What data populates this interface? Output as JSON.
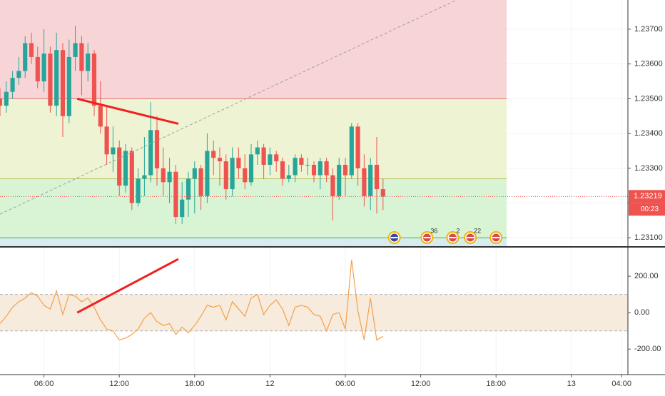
{
  "chart_data": [
    {
      "type": "candlestick",
      "open": [
        1.235,
        1.2348,
        1.2352,
        1.2356,
        1.2358,
        1.2366,
        1.2362,
        1.2355,
        1.2363,
        1.2348,
        1.2364,
        1.2345,
        1.2362,
        1.2366,
        1.2358,
        1.2363,
        1.2348,
        1.2342,
        1.2334,
        1.2336,
        1.2325,
        1.2335,
        1.232,
        1.2327,
        1.2328,
        1.2341,
        1.233,
        1.2326,
        1.2329,
        1.2316,
        1.2321,
        1.2327,
        1.233,
        1.2322,
        1.2335,
        1.2333,
        1.2332,
        1.2324,
        1.2333,
        1.233,
        1.2326,
        1.2334,
        1.2336,
        1.2331,
        1.2334,
        1.2332,
        1.2327,
        1.2328,
        1.2333,
        1.2331,
        1.2331,
        1.2328,
        1.2332,
        1.2328,
        1.2322,
        1.2331,
        1.2328,
        1.2342,
        1.233,
        1.2322,
        1.2331,
        1.2324
      ],
      "high": [
        1.2353,
        1.2355,
        1.2358,
        1.2362,
        1.2368,
        1.2369,
        1.2365,
        1.237,
        1.2365,
        1.2369,
        1.2366,
        1.2367,
        1.2371,
        1.2368,
        1.2366,
        1.2364,
        1.2355,
        1.2348,
        1.2342,
        1.2338,
        1.2337,
        1.2336,
        1.233,
        1.2339,
        1.2349,
        1.2345,
        1.2336,
        1.2333,
        1.2331,
        1.2326,
        1.2329,
        1.2332,
        1.2331,
        1.234,
        1.2338,
        1.2336,
        1.2334,
        1.2336,
        1.2336,
        1.2334,
        1.2337,
        1.2338,
        1.2337,
        1.2336,
        1.2335,
        1.2333,
        1.2331,
        1.2334,
        1.2334,
        1.2333,
        1.2332,
        1.2333,
        1.2333,
        1.233,
        1.2333,
        1.2333,
        1.2343,
        1.2343,
        1.2334,
        1.2333,
        1.2339,
        1.2327
      ],
      "low": [
        1.2345,
        1.2346,
        1.235,
        1.2354,
        1.2356,
        1.236,
        1.2353,
        1.2352,
        1.2346,
        1.2345,
        1.2339,
        1.2343,
        1.2358,
        1.2351,
        1.2355,
        1.2345,
        1.234,
        1.2331,
        1.2329,
        1.2322,
        1.2323,
        1.2318,
        1.2319,
        1.2322,
        1.2326,
        1.2325,
        1.2322,
        1.232,
        1.2314,
        1.2314,
        1.2316,
        1.2317,
        1.2318,
        1.232,
        1.2328,
        1.2325,
        1.2321,
        1.2322,
        1.2327,
        1.2324,
        1.2325,
        1.2331,
        1.2327,
        1.2328,
        1.2329,
        1.2325,
        1.2326,
        1.2326,
        1.2329,
        1.2328,
        1.2326,
        1.2324,
        1.2326,
        1.2315,
        1.2321,
        1.2322,
        1.2327,
        1.2325,
        1.2319,
        1.2318,
        1.2317,
        1.2318
      ],
      "close": [
        1.2348,
        1.2352,
        1.2356,
        1.2358,
        1.2366,
        1.2362,
        1.2355,
        1.2363,
        1.2348,
        1.2364,
        1.2345,
        1.2362,
        1.2366,
        1.2358,
        1.2363,
        1.2348,
        1.2342,
        1.2334,
        1.2336,
        1.2325,
        1.2335,
        1.232,
        1.2327,
        1.2328,
        1.2341,
        1.233,
        1.2326,
        1.2329,
        1.2316,
        1.2321,
        1.2327,
        1.233,
        1.2322,
        1.2335,
        1.2333,
        1.2332,
        1.2324,
        1.2333,
        1.233,
        1.2326,
        1.2334,
        1.2336,
        1.2331,
        1.2334,
        1.2332,
        1.2327,
        1.2328,
        1.2333,
        1.2331,
        1.2331,
        1.2328,
        1.2332,
        1.2328,
        1.2322,
        1.2331,
        1.2328,
        1.2342,
        1.233,
        1.2322,
        1.2331,
        1.2324,
        1.23219
      ],
      "up_color": "#26a69a",
      "down_color": "#ef5350",
      "xlim": [
        0,
        100
      ],
      "xticks": [
        {
          "value": 7,
          "label": "06:00"
        },
        {
          "value": 19,
          "label": "12:00"
        },
        {
          "value": 31,
          "label": "18:00"
        },
        {
          "value": 43,
          "label": "12"
        },
        {
          "value": 55,
          "label": "06:00"
        },
        {
          "value": 67,
          "label": "12:00"
        },
        {
          "value": 79,
          "label": "18:00"
        },
        {
          "value": 91,
          "label": "13"
        },
        {
          "value": 99,
          "label": "04:00"
        }
      ],
      "ylim": [
        1.23076,
        1.23784
      ],
      "yticks": [
        {
          "value": 1.231,
          "label": "1.23100"
        },
        {
          "value": 1.232,
          "label": "1.23200"
        },
        {
          "value": 1.233,
          "label": "1.23300"
        },
        {
          "value": 1.234,
          "label": "1.23400"
        },
        {
          "value": 1.235,
          "label": "1.23500"
        },
        {
          "value": 1.236,
          "label": "1.23600"
        },
        {
          "value": 1.237,
          "label": "1.23700"
        }
      ],
      "levels": [
        {
          "value": 1.235,
          "line_color": "#e0736f",
          "fill_color": "#f7d5d6"
        },
        {
          "value": 1.2327,
          "line_color": "#b7c56a",
          "fill_color": "#eef3d3"
        },
        {
          "value": 1.231,
          "line_color": "#4caf50",
          "fill_color": "#d8f4d4"
        }
      ],
      "below_fill_color": "#d6ecee",
      "levels_end": 80.7,
      "trend_lines": [
        {
          "x": [
            0,
            72.7
          ],
          "y": [
            1.23168,
            1.23784
          ],
          "color": "#9e9e9e",
          "dashed": true
        },
        {
          "x": [
            12.3,
            28.4
          ],
          "y": [
            1.235,
            1.23428
          ],
          "color": "#f02020",
          "dashed": false
        }
      ],
      "last_price": {
        "value": 1.23219,
        "label": "1.23219"
      },
      "countdown": "00:23",
      "events": [
        {
          "x": 62.8
        },
        {
          "x": 68,
          "label": "36"
        },
        {
          "x": 72.1,
          "label": "2"
        },
        {
          "x": 74.9,
          "label": "22"
        },
        {
          "x": 79
        }
      ]
    },
    {
      "type": "line",
      "values": [
        -60,
        -20,
        30,
        60,
        80,
        110,
        90,
        40,
        20,
        120,
        -10,
        100,
        90,
        60,
        80,
        30,
        -40,
        -90,
        -100,
        -150,
        -140,
        -120,
        -90,
        -30,
        0,
        -50,
        -70,
        -60,
        -120,
        -80,
        -110,
        -70,
        -20,
        40,
        30,
        40,
        -40,
        60,
        20,
        -20,
        80,
        100,
        -10,
        40,
        70,
        20,
        -70,
        30,
        40,
        30,
        -10,
        -20,
        -100,
        -10,
        0,
        -90,
        290,
        10,
        -150,
        80,
        -150,
        -130
      ],
      "color": "#f5a04a",
      "ylim": [
        -340,
        357
      ],
      "yticks": [
        {
          "value": -200,
          "label": "-200.00"
        },
        {
          "value": 0,
          "label": "0.00"
        },
        {
          "value": 200,
          "label": "200.00"
        }
      ],
      "band": [
        -100,
        100
      ],
      "band_color": "#f6ebdc",
      "trend_lines": [
        {
          "x": [
            12.3,
            28.4
          ],
          "y": [
            0,
            294
          ],
          "color": "#f02020",
          "dashed": false
        }
      ]
    }
  ]
}
